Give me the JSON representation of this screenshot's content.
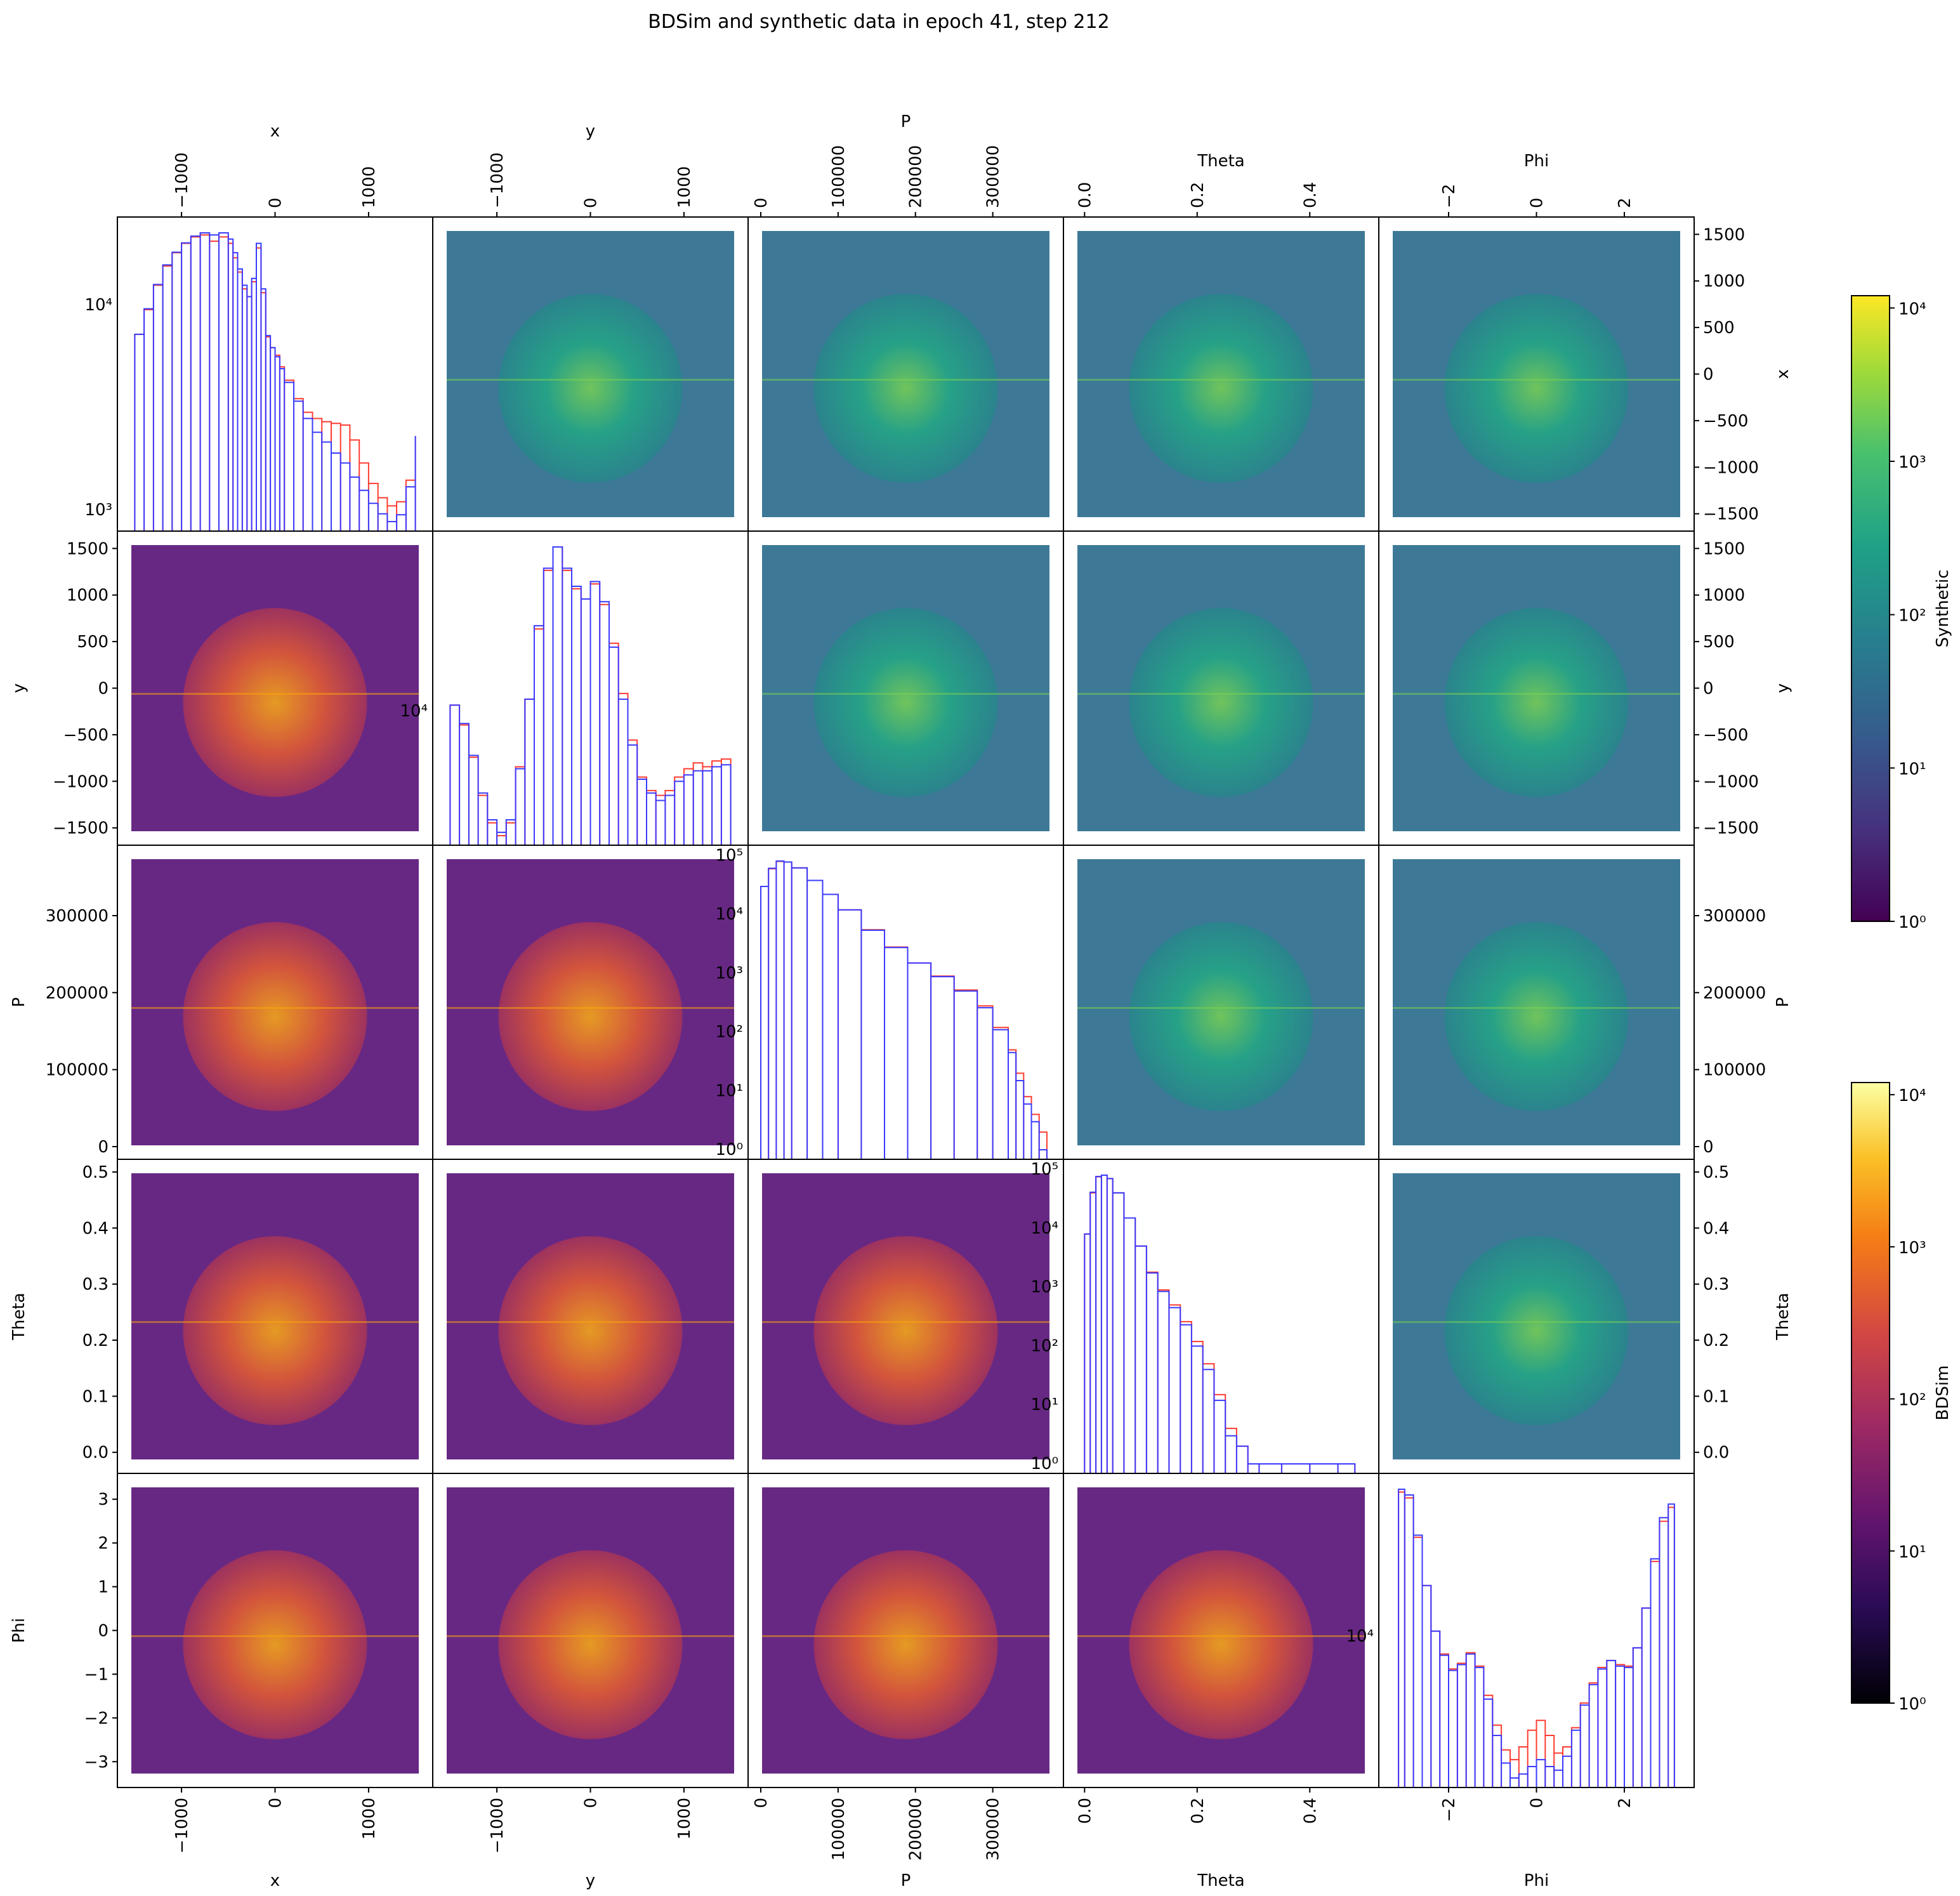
{
  "title": "BDSim and synthetic data in epoch 41, step 212",
  "colors": {
    "bdsim_line": "#ff3b30",
    "synthetic_line": "#3a3aff",
    "synthetic_cmap": "viridis",
    "bdsim_cmap": "inferno"
  },
  "chart_data": {
    "type": "heatmap",
    "title": "BDSim and synthetic data in epoch 41, step 212",
    "variables": [
      {
        "name": "x",
        "range": [
          -1550,
          1550
        ],
        "ticks": [
          -1000,
          0,
          1000
        ],
        "tick_labels": [
          "−1000",
          "0",
          "1000"
        ]
      },
      {
        "name": "y",
        "range": [
          -1550,
          1550
        ],
        "ticks": [
          -1000,
          0,
          1000
        ],
        "tick_labels": [
          "−1000",
          "0",
          "1000"
        ]
      },
      {
        "name": "P",
        "range": [
          0,
          375000
        ],
        "ticks": [
          0,
          100000,
          200000,
          300000
        ],
        "tick_labels": [
          "0",
          "100000",
          "200000",
          "300000"
        ]
      },
      {
        "name": "Theta",
        "range": [
          -0.015,
          0.5
        ],
        "ticks": [
          0.0,
          0.2,
          0.4
        ],
        "tick_labels": [
          "0.0",
          "0.2",
          "0.4"
        ]
      },
      {
        "name": "Phi",
        "range": [
          -3.3,
          3.3
        ],
        "ticks": [
          -2,
          0,
          2
        ],
        "tick_labels": [
          "−2",
          "0",
          "2"
        ]
      }
    ],
    "left_ticks": {
      "y": [
        "−1500",
        "−1000",
        "−500",
        "0",
        "500",
        "1000",
        "1500"
      ],
      "y_values": [
        -1500,
        -1000,
        -500,
        0,
        500,
        1000,
        1500
      ],
      "P": [
        "0",
        "100000",
        "200000",
        "300000"
      ],
      "P_values": [
        0,
        100000,
        200000,
        300000
      ],
      "Theta": [
        "0.0",
        "0.1",
        "0.2",
        "0.3",
        "0.4",
        "0.5"
      ],
      "Theta_values": [
        0.0,
        0.1,
        0.2,
        0.3,
        0.4,
        0.5
      ],
      "Phi": [
        "−3",
        "−2",
        "−1",
        "0",
        "1",
        "2",
        "3"
      ],
      "Phi_values": [
        -3,
        -2,
        -1,
        0,
        1,
        2,
        3
      ]
    },
    "right_ticks": {
      "x": [
        "−1500",
        "−1000",
        "−500",
        "0",
        "500",
        "1000",
        "1500"
      ],
      "x_values": [
        -1500,
        -1000,
        -500,
        0,
        500,
        1000,
        1500
      ],
      "y": [
        "−1500",
        "−1000",
        "−500",
        "0",
        "500",
        "1000",
        "1500"
      ],
      "y_values": [
        -1500,
        -1000,
        -500,
        0,
        500,
        1000,
        1500
      ],
      "P": [
        "0",
        "100000",
        "200000",
        "300000"
      ],
      "P_values": [
        0,
        100000,
        200000,
        300000
      ],
      "Theta": [
        "0.0",
        "0.1",
        "0.2",
        "0.3",
        "0.4",
        "0.5"
      ],
      "Theta_values": [
        0.0,
        0.1,
        0.2,
        0.3,
        0.4,
        0.5
      ]
    },
    "diagonal_hist": [
      {
        "var": "x",
        "log": true,
        "ylim": [
          800,
          28000
        ],
        "y_tick_labels": [
          "10³",
          "10⁴"
        ],
        "y_ticks": [
          1000,
          10000
        ],
        "x": [
          -1500,
          -1400,
          -1300,
          -1200,
          -1100,
          -1000,
          -900,
          -800,
          -700,
          -600,
          -500,
          -450,
          -400,
          -350,
          -300,
          -250,
          -200,
          -150,
          -100,
          -50,
          0,
          50,
          100,
          200,
          300,
          400,
          500,
          600,
          700,
          800,
          900,
          1000,
          1100,
          1200,
          1300,
          1400,
          1500
        ],
        "bdsim": [
          7200,
          9500,
          12500,
          15500,
          18000,
          20000,
          21500,
          22000,
          20500,
          21500,
          20000,
          17000,
          14500,
          12000,
          11000,
          13000,
          19000,
          11500,
          7000,
          6200,
          5700,
          5000,
          4300,
          3500,
          3000,
          2800,
          2700,
          2650,
          2600,
          2200,
          1700,
          1350,
          1150,
          1050,
          1100,
          1400,
          2300
        ],
        "synthetic": [
          7200,
          9600,
          12600,
          15700,
          18100,
          20100,
          21700,
          22500,
          22000,
          22500,
          21000,
          18000,
          15000,
          12500,
          11000,
          13500,
          20000,
          12000,
          7100,
          6200,
          5600,
          4900,
          4200,
          3400,
          2800,
          2400,
          2150,
          1900,
          1700,
          1450,
          1250,
          1080,
          960,
          880,
          950,
          1300,
          2300
        ]
      },
      {
        "var": "y",
        "log": true,
        "y_tick_labels": [
          "10⁴"
        ],
        "y_ticks": [
          10000
        ],
        "x": [
          -1500,
          -1400,
          -1300,
          -1200,
          -1100,
          -1000,
          -900,
          -800,
          -700,
          -600,
          -500,
          -400,
          -300,
          -200,
          -100,
          0,
          100,
          200,
          300,
          400,
          500,
          600,
          700,
          800,
          900,
          1000,
          1100,
          1200,
          1300,
          1400,
          1500
        ],
        "bdsim": [
          10500,
          9000,
          7000,
          5200,
          4200,
          3800,
          4200,
          6500,
          11000,
          19000,
          30000,
          36000,
          30000,
          26000,
          24000,
          27000,
          23000,
          17000,
          11500,
          8000,
          6000,
          5400,
          5200,
          5400,
          6000,
          6400,
          6700,
          6500,
          6800,
          6900,
          6600
        ],
        "synthetic": [
          10500,
          9100,
          7100,
          5300,
          4300,
          3900,
          4300,
          6400,
          11000,
          19500,
          30500,
          36000,
          30500,
          26500,
          24000,
          27500,
          23500,
          16500,
          11000,
          7700,
          5900,
          5300,
          5000,
          5200,
          5800,
          6100,
          6300,
          6300,
          6500,
          6600,
          6500
        ]
      },
      {
        "var": "P",
        "log": true,
        "y_tick_labels": [
          "10⁰",
          "10¹",
          "10²",
          "10³",
          "10⁴",
          "10⁵"
        ],
        "y_ticks": [
          1,
          10,
          100,
          1000,
          10000,
          100000
        ],
        "x": [
          0,
          10000,
          20000,
          30000,
          40000,
          60000,
          80000,
          100000,
          130000,
          160000,
          190000,
          220000,
          250000,
          280000,
          300000,
          320000,
          330000,
          340000,
          350000,
          360000,
          370000
        ],
        "bdsim": [
          30000,
          60000,
          80000,
          78000,
          62000,
          38000,
          22000,
          12000,
          5500,
          2800,
          1500,
          900,
          520,
          280,
          120,
          50,
          20,
          8,
          4,
          2,
          1
        ],
        "synthetic": [
          30000,
          61000,
          81000,
          78000,
          62000,
          38000,
          22000,
          12000,
          5400,
          2750,
          1500,
          880,
          500,
          260,
          110,
          45,
          15,
          6,
          3,
          1,
          1
        ]
      },
      {
        "var": "Theta",
        "log": true,
        "y_tick_labels": [
          "10⁰",
          "10¹",
          "10²",
          "10³",
          "10⁴",
          "10⁵"
        ],
        "y_ticks": [
          1,
          10,
          100,
          1000,
          10000,
          100000
        ],
        "x": [
          0.0,
          0.01,
          0.02,
          0.03,
          0.04,
          0.05,
          0.07,
          0.09,
          0.11,
          0.13,
          0.15,
          0.17,
          0.19,
          0.21,
          0.23,
          0.25,
          0.27,
          0.29,
          0.31,
          0.35,
          0.4,
          0.45,
          0.48
        ],
        "bdsim": [
          8000,
          40000,
          75000,
          80000,
          70000,
          40000,
          15000,
          5000,
          1800,
          900,
          500,
          260,
          120,
          50,
          15,
          4,
          2,
          1,
          1,
          1,
          1,
          1,
          1
        ],
        "synthetic": [
          8000,
          41000,
          76000,
          80000,
          70000,
          40000,
          15000,
          5000,
          1750,
          850,
          450,
          230,
          100,
          40,
          12,
          3,
          2,
          1,
          0,
          0,
          0,
          0,
          0
        ]
      },
      {
        "var": "Phi",
        "log": true,
        "y_tick_labels": [
          "10⁴"
        ],
        "y_ticks": [
          10000
        ],
        "x": [
          -3.14,
          -3.0,
          -2.8,
          -2.6,
          -2.4,
          -2.2,
          -2.0,
          -1.8,
          -1.6,
          -1.4,
          -1.2,
          -1.0,
          -0.8,
          -0.6,
          -0.4,
          -0.2,
          0.0,
          0.2,
          0.4,
          0.6,
          0.8,
          1.0,
          1.2,
          1.4,
          1.6,
          1.8,
          2.0,
          2.2,
          2.4,
          2.6,
          2.8,
          3.0,
          3.14
        ],
        "bdsim": [
          38000,
          36000,
          25000,
          16000,
          10500,
          8500,
          7400,
          7800,
          8600,
          7600,
          5800,
          4400,
          3500,
          3200,
          3600,
          4200,
          4600,
          4000,
          3400,
          3600,
          4300,
          5400,
          6500,
          7500,
          8000,
          7700,
          7600,
          9000,
          13000,
          20000,
          29000,
          33000,
          33000
        ],
        "synthetic": [
          39000,
          37000,
          25500,
          16000,
          10500,
          8400,
          7300,
          7700,
          8500,
          7500,
          5600,
          4000,
          3100,
          2700,
          2800,
          3000,
          3200,
          3000,
          2900,
          3300,
          4200,
          5300,
          6400,
          7400,
          8000,
          7600,
          7500,
          9000,
          13000,
          20500,
          30000,
          34000,
          34000
        ]
      }
    ],
    "colorbars": [
      {
        "label": "Synthetic",
        "cmap": "viridis",
        "range": [
          1,
          10000
        ],
        "tick_labels": [
          "10⁰",
          "10¹",
          "10²",
          "10³",
          "10⁴"
        ],
        "ticks": [
          1,
          10,
          100,
          1000,
          10000
        ]
      },
      {
        "label": "BDSim",
        "cmap": "inferno",
        "range": [
          1,
          10000
        ],
        "tick_labels": [
          "10⁰",
          "10¹",
          "10²",
          "10³",
          "10⁴"
        ],
        "ticks": [
          1,
          10,
          100,
          1000,
          10000
        ]
      }
    ],
    "upper_triangle": "Synthetic",
    "lower_triangle": "BDSim",
    "grid": false
  }
}
